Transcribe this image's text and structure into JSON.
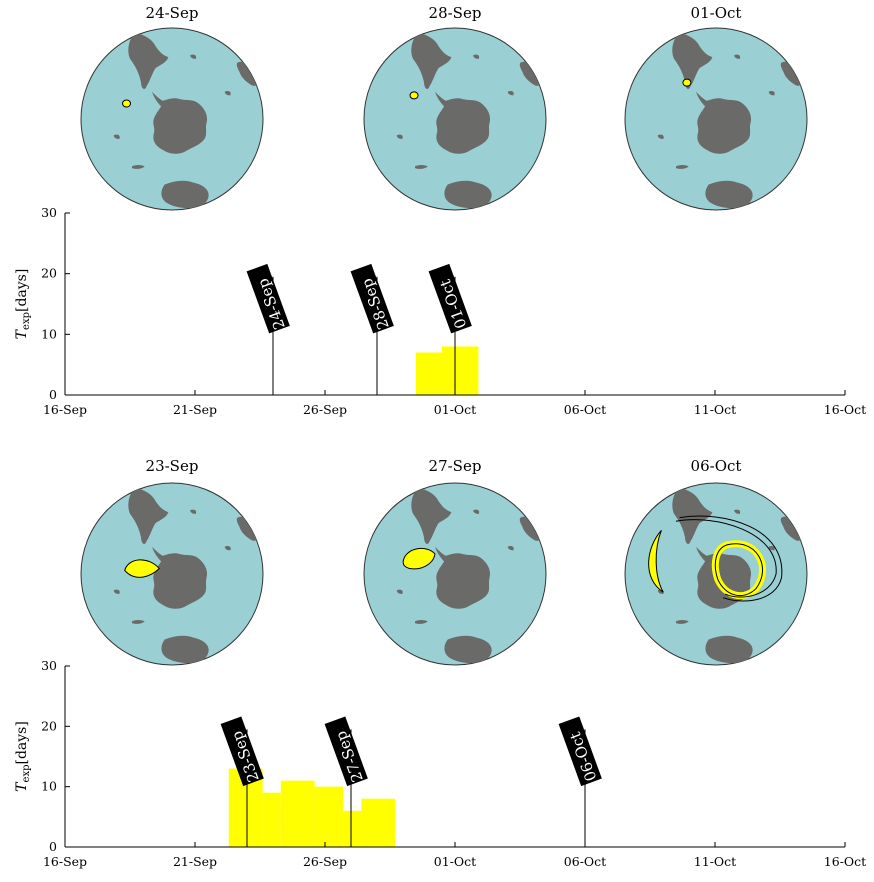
{
  "colors": {
    "ocean": "#9acfd3",
    "land": "#6a6b69",
    "anomaly": "#ffff00",
    "flag_bg": "#000000",
    "flag_text": "#ffffff",
    "bar": "#ffff00"
  },
  "panels": [
    {
      "maps": [
        {
          "title": "24-Sep",
          "shape": "small-north"
        },
        {
          "title": "28-Sep",
          "shape": "small-north"
        },
        {
          "title": "01-Oct",
          "shape": "small-north"
        }
      ],
      "chart_data": {
        "type": "bar",
        "xlabel": "",
        "ylabel_main": "T",
        "ylabel_sub": "exp",
        "ylabel_rest": "[days]",
        "ylim": [
          0,
          30
        ],
        "yticks": [
          "0",
          "10",
          "20",
          "30"
        ],
        "x_start": "16-Sep",
        "x_end": "16-Oct",
        "xticks": [
          "16-Sep",
          "21-Sep",
          "26-Sep",
          "01-Oct",
          "06-Oct",
          "11-Oct",
          "16-Oct"
        ],
        "bars": [
          {
            "start": "29.5-Sep",
            "end": "30.5-Sep",
            "value": 7
          },
          {
            "start": "30.5-Sep",
            "end": "01.9-Oct",
            "value": 8
          }
        ],
        "markers": [
          {
            "label": "24-Sep",
            "date": "24-Sep"
          },
          {
            "label": "28-Sep",
            "date": "28-Sep"
          },
          {
            "label": "01-Oct",
            "date": "01-Oct"
          }
        ],
        "grid": false
      }
    },
    {
      "maps": [
        {
          "title": "23-Sep",
          "shape": "large-west"
        },
        {
          "title": "27-Sep",
          "shape": "large-west"
        },
        {
          "title": "06-Oct",
          "shape": "rings"
        }
      ],
      "chart_data": {
        "type": "bar",
        "xlabel": "",
        "ylabel_main": "T",
        "ylabel_sub": "exp",
        "ylabel_rest": "[days]",
        "ylim": [
          0,
          30
        ],
        "yticks": [
          "0",
          "10",
          "20",
          "30"
        ],
        "x_start": "16-Sep",
        "x_end": "16-Oct",
        "xticks": [
          "16-Sep",
          "21-Sep",
          "26-Sep",
          "01-Oct",
          "06-Oct",
          "11-Oct",
          "16-Oct"
        ],
        "bars": [
          {
            "start": "22.3-Sep",
            "end": "23.6-Sep",
            "value": 13
          },
          {
            "start": "23.6-Sep",
            "end": "24.3-Sep",
            "value": 9
          },
          {
            "start": "24.3-Sep",
            "end": "25.6-Sep",
            "value": 11
          },
          {
            "start": "25.6-Sep",
            "end": "26.7-Sep",
            "value": 10
          },
          {
            "start": "26.7-Sep",
            "end": "27.4-Sep",
            "value": 6
          },
          {
            "start": "27.4-Sep",
            "end": "28.7-Sep",
            "value": 8
          }
        ],
        "markers": [
          {
            "label": "23-Sep",
            "date": "23-Sep"
          },
          {
            "label": "27-Sep",
            "date": "27-Sep"
          },
          {
            "label": "06-Oct",
            "date": "06-Oct"
          }
        ],
        "grid": false
      }
    }
  ]
}
